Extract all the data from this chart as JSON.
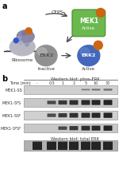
{
  "panel_a_elements": {
    "ribosome_label": "Ribosome",
    "cfps_label": "CFPS",
    "mek1_label": "MEK1",
    "mek1_sublabel": "Active",
    "erk2_inactive_label": "Inactive",
    "erk2_active_label": "Active",
    "ribosome_color": "#b0b0b8",
    "ribosome_small_color": "#8888a8",
    "mek1_color": "#6ab84e",
    "mek1_edge_color": "#4a8a30",
    "erk2_inactive_color": "#909090",
    "erk2_active_color": "#4466bb",
    "orange_dot_color": "#cc6610",
    "arrow_color": "#444444"
  },
  "panel_b": {
    "wb_phos_label": "Western blot: phos-ERK",
    "wb_total_label": "Western blot: total ERK",
    "time_label": "Time (min)",
    "time_points": [
      "-",
      "0.5",
      "1",
      "2",
      "5",
      "10",
      "30"
    ],
    "row_labels": [
      "MEK1-SS",
      "MEK1-S$^p$S",
      "MEK1-SS$^p$",
      "MEK1-S$^p$S$^p$"
    ],
    "bg_colors": [
      "#d0d0d0",
      "#c8c8c8",
      "#d0d0d0",
      "#c8c8c8"
    ],
    "band_color": "#1a1a1a",
    "row1_bands": [
      0.0,
      0.0,
      0.0,
      0.0,
      0.12,
      0.18,
      0.22
    ],
    "row2_bands": [
      0.0,
      0.55,
      0.7,
      0.8,
      0.85,
      0.88,
      0.9
    ],
    "row3_bands": [
      0.0,
      0.55,
      0.7,
      0.8,
      0.85,
      0.88,
      0.9
    ],
    "row4_bands": [
      0.0,
      0.0,
      0.55,
      0.7,
      0.8,
      0.85,
      0.9
    ],
    "total_bands": [
      0.9,
      0.9,
      0.9,
      0.9,
      0.9,
      0.9,
      0.9
    ],
    "total_bg_color": "#b0b0b0"
  }
}
